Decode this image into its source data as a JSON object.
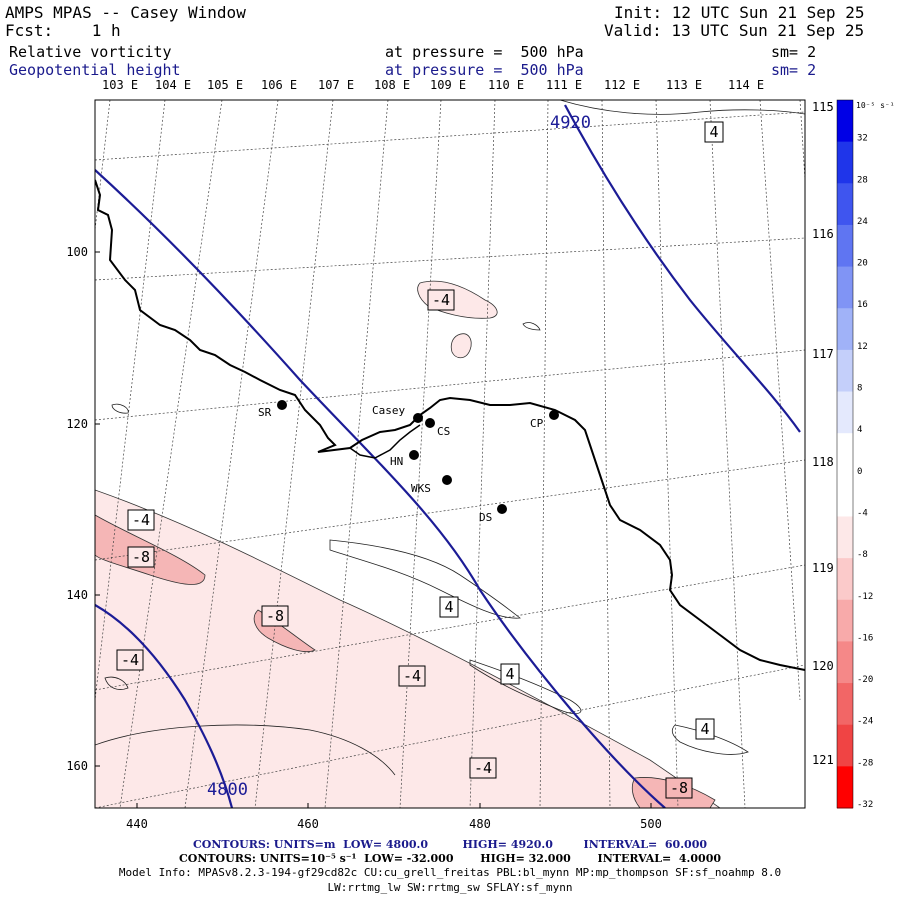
{
  "header": {
    "title": "AMPS MPAS -- Casey Window",
    "forecast": "Fcst:    1 h",
    "init": "Init: 12 UTC Sun 21 Sep 25",
    "valid": "Valid: 13 UTC Sun 21 Sep 25",
    "field1_name": "Relative vorticity",
    "field1_level": "at pressure =  500 hPa",
    "field1_sm": "sm= 2",
    "field2_name": "Geopotential height",
    "field2_level": "at pressure =  500 hPa",
    "field2_sm": "sm= 2"
  },
  "top_lon_labels": [
    "103 E",
    "104 E",
    "105 E",
    "106 E",
    "107 E",
    "108 E",
    "109 E",
    "110 E",
    "111 E",
    "112 E",
    "113 E",
    "114 E"
  ],
  "right_lon_labels": [
    "115 E",
    "116 E",
    "117 E",
    "118 E",
    "119 E",
    "120 E",
    "121 E"
  ],
  "x_ticks": [
    "440",
    "460",
    "480",
    "500"
  ],
  "y_ticks": [
    "100",
    "120",
    "140",
    "160"
  ],
  "stations": [
    {
      "name": "SR"
    },
    {
      "name": "Casey"
    },
    {
      "name": "CS"
    },
    {
      "name": "CP"
    },
    {
      "name": "HN"
    },
    {
      "name": "WKS"
    },
    {
      "name": "DS"
    }
  ],
  "height_labels": [
    "4920",
    "4800"
  ],
  "vort_labels": [
    "4",
    "-4",
    "-4",
    "-8",
    "-8",
    "-4",
    "4",
    "-4",
    "4",
    "4",
    "-4",
    "-8"
  ],
  "colorbar": {
    "unit": "10⁻⁵ s⁻¹",
    "labels": [
      "32",
      "28",
      "24",
      "20",
      "16",
      "12",
      "8",
      "4",
      "0",
      "-4",
      "-8",
      "-12",
      "-16",
      "-20",
      "-24",
      "-28",
      "-32"
    ],
    "colors": [
      "#0000e6",
      "#1f35ea",
      "#3f55ef",
      "#5f75f2",
      "#8094f5",
      "#a0b2f8",
      "#c4cffa",
      "#e4e9fd",
      "#ffffff",
      "#ffffff",
      "#fde8e8",
      "#fbcaca",
      "#f8aaaa",
      "#f58888",
      "#f26666",
      "#f04444",
      "#ff0000"
    ]
  },
  "footer": {
    "line1": "CONTOURS: UNITS=m  LOW= 4800.0         HIGH= 4920.0        INTERVAL=  60.000",
    "line2": "CONTOURS: UNITS=10⁻⁵ s⁻¹  LOW= -32.000       HIGH= 32.000       INTERVAL=  4.0000",
    "line3": "Model Info: MPASv8.2.3-194-gf29cd82c CU:cu_grell_freitas PBL:bl_mynn MP:mp_thompson SF:sf_noahmp 8.0",
    "line4": "LW:rrtmg_lw SW:rrtmg_sw SFLAY:sf_mynn"
  }
}
